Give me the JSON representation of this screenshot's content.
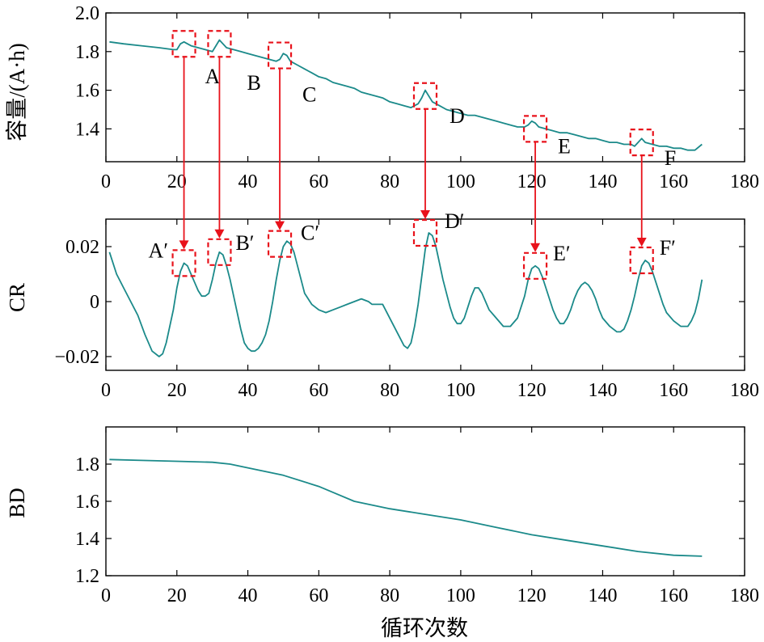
{
  "chart_data": [
    {
      "type": "line",
      "ylabel": "容量/(A·h)",
      "xlabel": "",
      "xlim": [
        0,
        180
      ],
      "ylim": [
        1.23,
        2.0
      ],
      "xticks": [
        0,
        20,
        40,
        60,
        80,
        100,
        120,
        140,
        160,
        180
      ],
      "yticks": [
        1.4,
        1.6,
        1.8,
        2.0
      ],
      "ytick_labels": [
        "1.4",
        "1.6",
        "1.8",
        "2.0"
      ],
      "color": "#1b8a8a",
      "series": [
        {
          "x": [
            1,
            5,
            10,
            15,
            19,
            20,
            21,
            22,
            23,
            24,
            26,
            28,
            30,
            31,
            32,
            33,
            34,
            36,
            38,
            40,
            42,
            44,
            46,
            48,
            49,
            50,
            51,
            52,
            54,
            56,
            58,
            60,
            62,
            64,
            66,
            68,
            70,
            72,
            74,
            76,
            78,
            80,
            82,
            84,
            86,
            88,
            89,
            90,
            91,
            92,
            94,
            96,
            98,
            100,
            102,
            104,
            106,
            108,
            110,
            112,
            114,
            116,
            118,
            119,
            120,
            121,
            122,
            124,
            126,
            128,
            130,
            132,
            134,
            136,
            138,
            140,
            142,
            144,
            146,
            148,
            149,
            150,
            151,
            152,
            154,
            156,
            158,
            160,
            162,
            164,
            166,
            168
          ],
          "values": [
            1.85,
            1.84,
            1.83,
            1.82,
            1.81,
            1.81,
            1.84,
            1.85,
            1.84,
            1.83,
            1.82,
            1.81,
            1.8,
            1.83,
            1.86,
            1.84,
            1.82,
            1.81,
            1.8,
            1.79,
            1.78,
            1.77,
            1.76,
            1.75,
            1.76,
            1.79,
            1.78,
            1.75,
            1.73,
            1.71,
            1.69,
            1.67,
            1.66,
            1.64,
            1.63,
            1.62,
            1.61,
            1.59,
            1.58,
            1.57,
            1.56,
            1.54,
            1.53,
            1.52,
            1.51,
            1.53,
            1.56,
            1.6,
            1.57,
            1.54,
            1.52,
            1.5,
            1.49,
            1.48,
            1.47,
            1.47,
            1.46,
            1.45,
            1.44,
            1.43,
            1.42,
            1.41,
            1.41,
            1.42,
            1.44,
            1.43,
            1.41,
            1.4,
            1.39,
            1.38,
            1.38,
            1.37,
            1.36,
            1.35,
            1.35,
            1.34,
            1.33,
            1.33,
            1.32,
            1.32,
            1.31,
            1.33,
            1.35,
            1.33,
            1.32,
            1.31,
            1.31,
            1.3,
            1.3,
            1.29,
            1.29,
            1.32
          ]
        }
      ],
      "markers": [
        {
          "label": "A",
          "x": 22,
          "y": 1.84
        },
        {
          "label": "B",
          "x": 32,
          "y": 1.84
        },
        {
          "label": "C",
          "x": 49,
          "y": 1.78
        },
        {
          "label": "D",
          "x": 90,
          "y": 1.57
        },
        {
          "label": "E",
          "x": 121,
          "y": 1.4
        },
        {
          "label": "F",
          "x": 151,
          "y": 1.33
        }
      ]
    },
    {
      "type": "line",
      "ylabel": "CR",
      "xlabel": "",
      "xlim": [
        0,
        180
      ],
      "ylim": [
        -0.025,
        0.03
      ],
      "xticks": [
        0,
        20,
        40,
        60,
        80,
        100,
        120,
        140,
        160,
        180
      ],
      "yticks": [
        -0.02,
        0,
        0.02
      ],
      "ytick_labels": [
        "−0.02",
        "0",
        "0.02"
      ],
      "color": "#1b8a8a",
      "series": [
        {
          "x": [
            1,
            3,
            5,
            7,
            9,
            11,
            13,
            15,
            16,
            17,
            19,
            20,
            21,
            22,
            23,
            24,
            25,
            26,
            27,
            28,
            29,
            30,
            31,
            32,
            33,
            34,
            35,
            36,
            37,
            38,
            39,
            40,
            41,
            42,
            43,
            44,
            45,
            46,
            47,
            48,
            49,
            50,
            51,
            52,
            53,
            54,
            55,
            56,
            58,
            60,
            62,
            64,
            66,
            68,
            70,
            72,
            74,
            75,
            76,
            78,
            80,
            82,
            84,
            85,
            86,
            87,
            88,
            89,
            90,
            91,
            92,
            93,
            94,
            95,
            96,
            97,
            98,
            99,
            100,
            101,
            102,
            103,
            104,
            105,
            106,
            107,
            108,
            110,
            112,
            114,
            116,
            118,
            119,
            120,
            121,
            122,
            123,
            124,
            125,
            126,
            127,
            128,
            129,
            130,
            131,
            132,
            133,
            134,
            135,
            136,
            137,
            138,
            139,
            140,
            142,
            144,
            145,
            146,
            147,
            148,
            149,
            150,
            151,
            152,
            153,
            154,
            155,
            156,
            157,
            158,
            160,
            162,
            163,
            164,
            165,
            166,
            167,
            168
          ],
          "values": [
            0.018,
            0.01,
            0.005,
            0.0,
            -0.005,
            -0.012,
            -0.018,
            -0.02,
            -0.019,
            -0.015,
            -0.003,
            0.005,
            0.011,
            0.014,
            0.013,
            0.01,
            0.007,
            0.004,
            0.002,
            0.002,
            0.003,
            0.008,
            0.014,
            0.018,
            0.017,
            0.013,
            0.008,
            0.002,
            -0.004,
            -0.01,
            -0.015,
            -0.017,
            -0.018,
            -0.018,
            -0.017,
            -0.015,
            -0.012,
            -0.007,
            0.0,
            0.008,
            0.015,
            0.02,
            0.022,
            0.021,
            0.018,
            0.013,
            0.008,
            0.003,
            -0.001,
            -0.003,
            -0.004,
            -0.003,
            -0.002,
            -0.001,
            0.0,
            0.001,
            0.0,
            -0.001,
            -0.001,
            -0.001,
            -0.006,
            -0.011,
            -0.016,
            -0.017,
            -0.015,
            -0.009,
            -0.001,
            0.009,
            0.019,
            0.025,
            0.024,
            0.02,
            0.014,
            0.008,
            0.003,
            -0.002,
            -0.006,
            -0.008,
            -0.008,
            -0.006,
            -0.002,
            0.002,
            0.005,
            0.005,
            0.003,
            0.0,
            -0.003,
            -0.006,
            -0.009,
            -0.009,
            -0.006,
            0.002,
            0.008,
            0.012,
            0.013,
            0.012,
            0.009,
            0.005,
            0.001,
            -0.003,
            -0.006,
            -0.008,
            -0.008,
            -0.006,
            -0.003,
            0.001,
            0.004,
            0.006,
            0.007,
            0.006,
            0.004,
            0.001,
            -0.003,
            -0.006,
            -0.009,
            -0.011,
            -0.011,
            -0.01,
            -0.007,
            -0.003,
            0.002,
            0.008,
            0.013,
            0.015,
            0.014,
            0.011,
            0.007,
            0.003,
            -0.001,
            -0.004,
            -0.007,
            -0.009,
            -0.009,
            -0.009,
            -0.007,
            -0.004,
            0.001,
            0.008
          ]
        }
      ],
      "markers": [
        {
          "label": "A′",
          "x": 22,
          "y": 0.014
        },
        {
          "label": "B′",
          "x": 32,
          "y": 0.018
        },
        {
          "label": "C′",
          "x": 49,
          "y": 0.021
        },
        {
          "label": "D′",
          "x": 90,
          "y": 0.025
        },
        {
          "label": "E′",
          "x": 121,
          "y": 0.013
        },
        {
          "label": "F′",
          "x": 151,
          "y": 0.015
        }
      ]
    },
    {
      "type": "line",
      "ylabel": "BD",
      "xlabel": "循环次数",
      "xlim": [
        0,
        180
      ],
      "ylim": [
        1.2,
        2.0
      ],
      "xticks": [
        0,
        20,
        40,
        60,
        80,
        100,
        120,
        140,
        160,
        180
      ],
      "yticks": [
        1.2,
        1.4,
        1.6,
        1.8
      ],
      "ytick_labels": [
        "1.2",
        "1.4",
        "1.6",
        "1.8"
      ],
      "color": "#1b8a8a",
      "series": [
        {
          "x": [
            1,
            10,
            20,
            30,
            35,
            40,
            50,
            60,
            65,
            70,
            80,
            90,
            100,
            110,
            120,
            130,
            140,
            150,
            160,
            168
          ],
          "values": [
            1.825,
            1.82,
            1.815,
            1.81,
            1.8,
            1.78,
            1.74,
            1.68,
            1.64,
            1.6,
            1.56,
            1.53,
            1.5,
            1.46,
            1.42,
            1.39,
            1.36,
            1.33,
            1.31,
            1.305
          ]
        }
      ]
    }
  ]
}
